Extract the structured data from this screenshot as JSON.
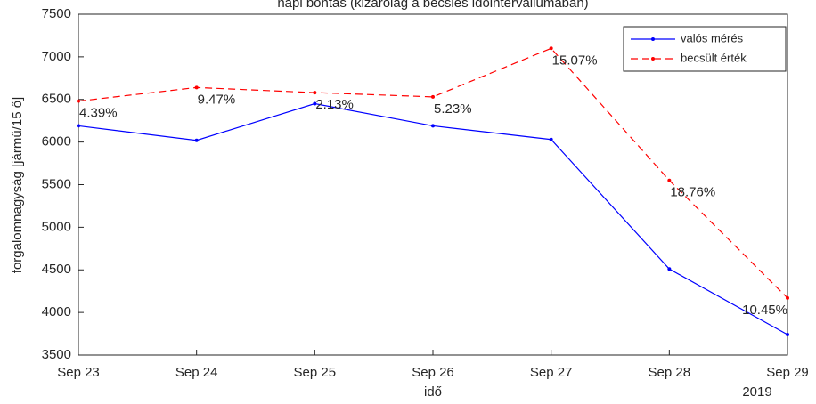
{
  "chart_data": {
    "type": "line",
    "title": "napi bontás (kizárólag a becslés időintervallumában)",
    "x_label": "idő",
    "y_label": "forgalomnagyság [jármű/15 ő]",
    "categories": [
      "Sep 23",
      "Sep 24",
      "Sep 25",
      "Sep 26",
      "Sep 27",
      "Sep 28",
      "Sep 29"
    ],
    "x_secondary_label": "2019",
    "series": [
      {
        "name": "valós mérés",
        "color": "#0000ff",
        "dash": false,
        "values": [
          6190,
          6020,
          6450,
          6190,
          6030,
          4510,
          3740
        ]
      },
      {
        "name": "becsült érték",
        "color": "#ff0000",
        "dash": true,
        "values": [
          6480,
          6640,
          6580,
          6530,
          7100,
          5550,
          4170
        ]
      }
    ],
    "annotations": [
      "4.39%",
      "9.47%",
      "2.13%",
      "5.23%",
      "15.07%",
      "18.76%",
      "10.45%"
    ],
    "ylim": [
      3500,
      7500
    ],
    "yticks": [
      3500,
      4000,
      4500,
      5000,
      5500,
      6000,
      6500,
      7000,
      7500
    ],
    "grid": false,
    "legend": "top-right"
  }
}
